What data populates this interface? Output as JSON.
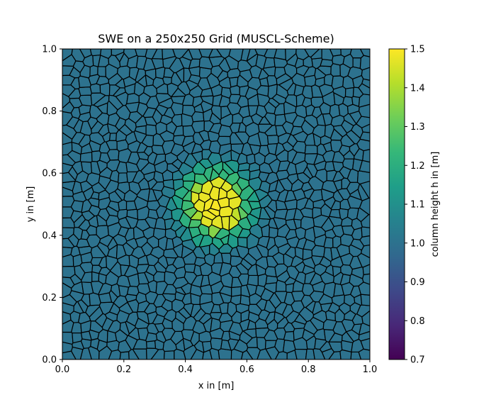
{
  "chart_data": {
    "type": "heatmap",
    "title": "SWE on a 250x250 Grid (MUSCL-Scheme)",
    "xlabel": "x in [m]",
    "ylabel": "y in [m]",
    "xlim": [
      0.0,
      1.0
    ],
    "ylim": [
      0.0,
      1.0
    ],
    "x_ticks": [
      "0.0",
      "0.2",
      "0.4",
      "0.6",
      "0.8",
      "1.0"
    ],
    "y_ticks": [
      "0.0",
      "0.2",
      "0.4",
      "0.6",
      "0.8",
      "1.0"
    ],
    "grid": false,
    "mesh": "voronoi",
    "field": {
      "base_value": 1.0,
      "center": [
        0.5,
        0.5
      ],
      "peak_value": 1.5,
      "profile": [
        {
          "r": 0.0,
          "h": 1.5
        },
        {
          "r": 0.075,
          "h": 1.46
        },
        {
          "r": 0.09,
          "h": 1.25
        },
        {
          "r": 0.12,
          "h": 1.18
        },
        {
          "r": 0.15,
          "h": 1.05
        },
        {
          "r": 0.18,
          "h": 1.0
        }
      ]
    },
    "colorbar": {
      "label": "column height h in [m]",
      "colormap": "viridis",
      "range": [
        0.7,
        1.5
      ],
      "ticks": [
        "0.7",
        "0.8",
        "0.9",
        "1.0",
        "1.1",
        "1.2",
        "1.3",
        "1.4",
        "1.5"
      ],
      "stops": [
        "#440154",
        "#482878",
        "#3e4989",
        "#31688e",
        "#26828e",
        "#1f9e89",
        "#35b779",
        "#6ece58",
        "#b5de2b",
        "#fde725"
      ]
    }
  }
}
